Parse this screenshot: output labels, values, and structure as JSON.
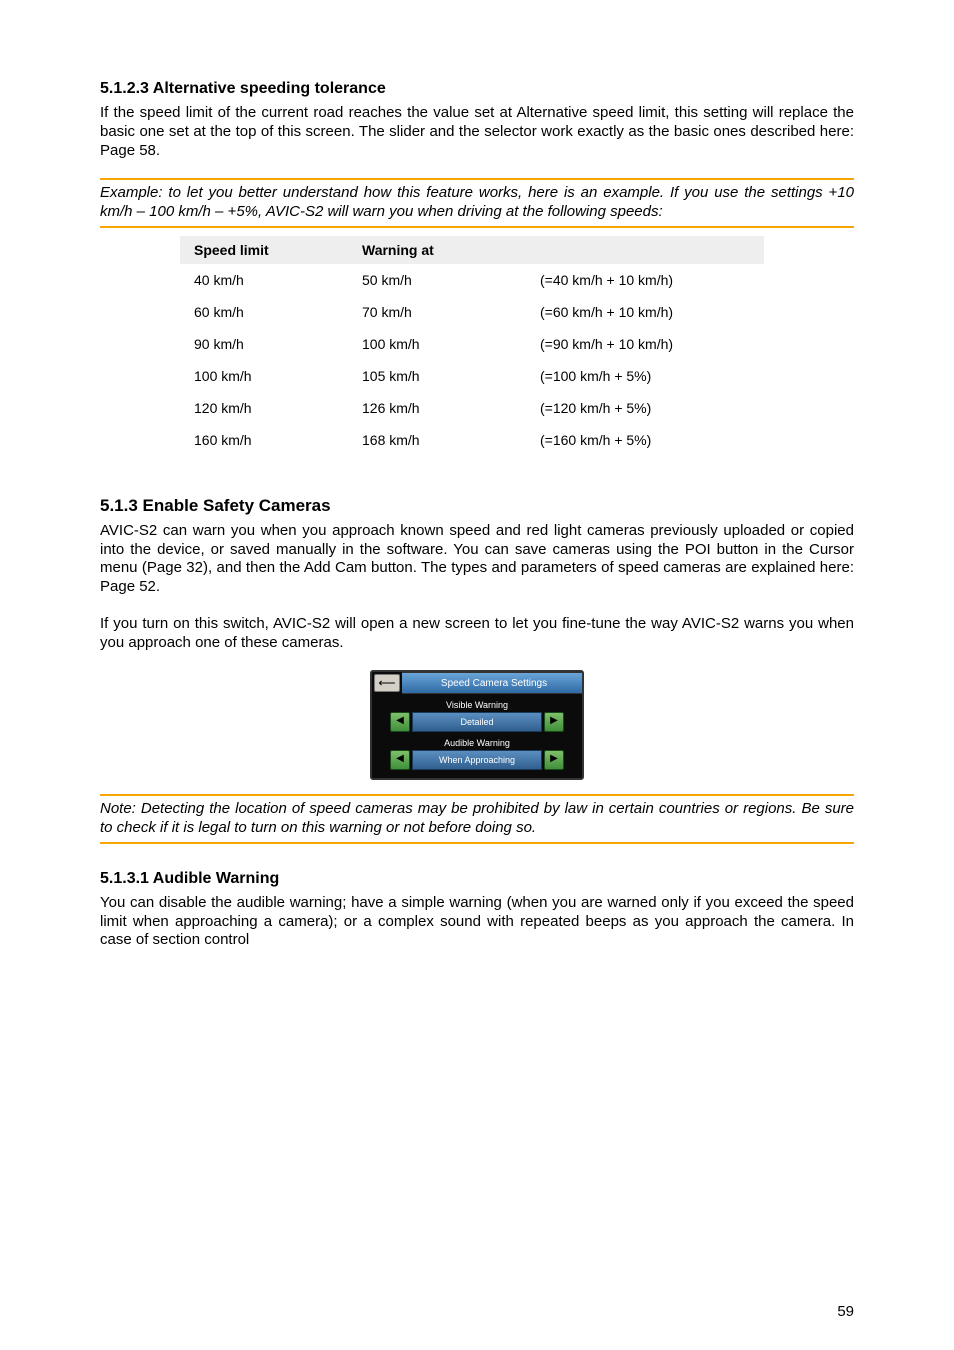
{
  "sec1": {
    "heading": "5.1.2.3  Alternative speeding tolerance",
    "p1": "If the speed limit of the current road reaches the value set at Alternative speed limit, this setting will replace the basic one set at the top of this screen. The slider and the selector work exactly as the basic ones described here: Page 58.",
    "example": "Example: to let you better understand how this feature works, here is an example. If you use the settings +10 km/h – 100 km/h – +5%, AVIC-S2 will warn you when driving at the following speeds:"
  },
  "table": {
    "headers": [
      "Speed limit",
      "Warning at",
      ""
    ],
    "rows": [
      [
        "40 km/h",
        "50 km/h",
        "(=40 km/h + 10 km/h)"
      ],
      [
        "60 km/h",
        "70 km/h",
        "(=60 km/h + 10 km/h)"
      ],
      [
        "90 km/h",
        "100 km/h",
        "(=90 km/h + 10 km/h)"
      ],
      [
        "100 km/h",
        "105 km/h",
        "(=100 km/h + 5%)"
      ],
      [
        "120 km/h",
        "126 km/h",
        "(=120 km/h + 5%)"
      ],
      [
        "160 km/h",
        "168 km/h",
        "(=160 km/h + 5%)"
      ]
    ]
  },
  "sec2": {
    "heading": "5.1.3  Enable Safety Cameras",
    "p1": "AVIC-S2 can warn you when you approach known speed and red light cameras previously uploaded or copied into the device, or saved manually in the software. You can save cameras using the POI button in the Cursor menu (Page 32), and then the Add Cam button. The types and parameters of speed cameras are explained here: Page 52.",
    "p2": "If you turn on this switch, AVIC-S2 will open a new screen to let you fine-tune the way AVIC-S2 warns you when you approach one of these cameras."
  },
  "gps": {
    "title": "Speed Camera Settings",
    "row1_label": "Visible Warning",
    "row1_value": "Detailed",
    "row2_label": "Audible Warning",
    "row2_value": "When Approaching"
  },
  "note": {
    "text": "Note: Detecting the location of speed cameras may be prohibited by law in certain countries or regions. Be sure to check if it is legal to turn on this warning or not before doing so."
  },
  "sec3": {
    "heading": "5.1.3.1  Audible Warning",
    "p1": "You can disable the audible warning; have a simple warning (when you are warned only if you exceed the speed limit when approaching a camera); or a complex sound with repeated beeps as you approach the camera. In case of section control"
  },
  "page_number": "59"
}
